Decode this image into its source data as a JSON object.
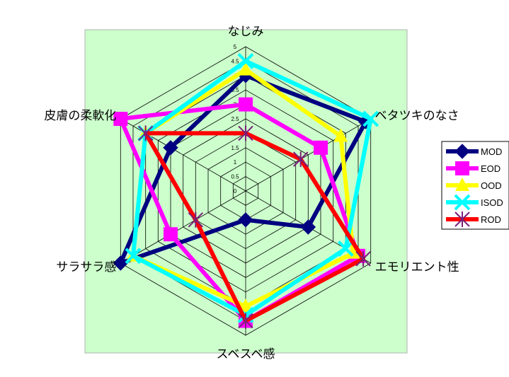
{
  "chart_data": {
    "type": "radar",
    "categories": [
      "なじみ",
      "ベタツキのなさ",
      "エモリエント性",
      "スベスベ感",
      "サラサラ感",
      "皮膚の柔軟化"
    ],
    "r_range": [
      0,
      5
    ],
    "ticks": [
      "0",
      "0.5",
      "1",
      "1.5",
      "2",
      "2.5",
      "3",
      "3.5",
      "4",
      "4.5",
      "5"
    ],
    "series": [
      {
        "name": "MOD",
        "color": "#000080",
        "marker": "diamond",
        "values": [
          4.0,
          4.8,
          2.5,
          1.0,
          5.0,
          3.0
        ]
      },
      {
        "name": "EOD",
        "color": "#ff00ff",
        "marker": "square",
        "values": [
          3.0,
          3.0,
          4.5,
          4.5,
          3.0,
          5.0
        ]
      },
      {
        "name": "OOD",
        "color": "#ffff00",
        "marker": "triangle",
        "values": [
          4.2,
          3.8,
          4.3,
          4.0,
          4.5,
          4.0
        ]
      },
      {
        "name": "ISOD",
        "color": "#00ffff",
        "marker": "x",
        "values": [
          4.5,
          5.0,
          4.0,
          4.3,
          4.5,
          4.0
        ]
      },
      {
        "name": "ROD",
        "color": "#ff0000",
        "marker": "star",
        "values": [
          2.0,
          2.2,
          4.7,
          4.5,
          2.0,
          4.0
        ]
      }
    ],
    "grid": true,
    "legend": "right"
  }
}
